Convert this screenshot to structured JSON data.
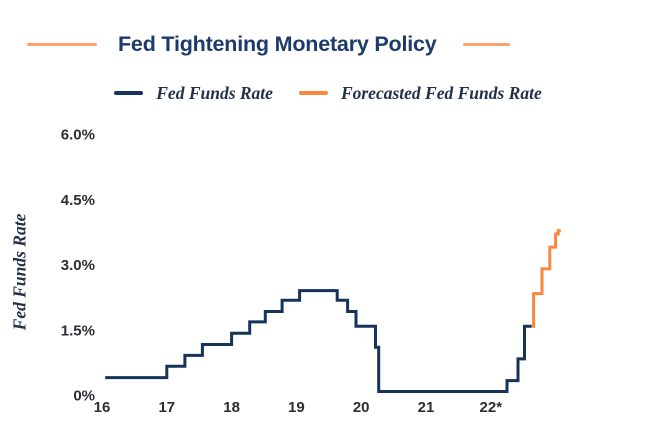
{
  "header": {
    "title": "Fed Tightening Monetary Policy",
    "rule_color": "#F9A26B"
  },
  "colors": {
    "navy": "#16335C",
    "orange": "#F8883F",
    "title_text": "#1C3A6B",
    "tick_text": "#2B2E33",
    "serif_text": "#22304A"
  },
  "legend": {
    "items": [
      {
        "label": "Fed Funds Rate",
        "color": "#16335C"
      },
      {
        "label": "Forecasted Fed Funds Rate",
        "color": "#F8883F"
      }
    ]
  },
  "chart_data": {
    "type": "line",
    "step": true,
    "title": "Fed Tightening Monetary Policy",
    "xlabel": "",
    "ylabel": "Fed Funds Rate",
    "grid": false,
    "legend_position": "top",
    "xlim": [
      15.85,
      23.25
    ],
    "ylim": [
      0,
      6.0
    ],
    "y_ticks": {
      "values": [
        0,
        1.5,
        3.0,
        4.5,
        6.0
      ],
      "labels": [
        "0%",
        "1.5%",
        "3.0%",
        "4.5%",
        "6.0%"
      ]
    },
    "x_ticks": {
      "values": [
        16,
        17,
        18,
        19,
        20,
        21,
        22
      ],
      "labels": [
        "16",
        "17",
        "18",
        "19",
        "20",
        "21",
        "22*"
      ]
    },
    "series": [
      {
        "name": "Fed Funds Rate",
        "color": "#16335C",
        "points": [
          [
            16.05,
            0.4
          ],
          [
            17.0,
            0.66
          ],
          [
            17.28,
            0.91
          ],
          [
            17.55,
            1.16
          ],
          [
            18.0,
            1.42
          ],
          [
            18.28,
            1.68
          ],
          [
            18.52,
            1.92
          ],
          [
            18.78,
            2.18
          ],
          [
            19.05,
            2.4
          ],
          [
            19.63,
            2.18
          ],
          [
            19.79,
            1.92
          ],
          [
            19.92,
            1.58
          ],
          [
            20.22,
            1.1
          ],
          [
            20.27,
            0.08
          ],
          [
            22.25,
            0.33
          ],
          [
            22.42,
            0.83
          ],
          [
            22.52,
            1.58
          ]
        ],
        "end_x": 22.63
      },
      {
        "name": "Forecasted Fed Funds Rate",
        "color": "#F8883F",
        "points": [
          [
            22.63,
            1.58
          ],
          [
            22.66,
            2.33
          ],
          [
            22.79,
            2.9
          ],
          [
            22.91,
            3.4
          ],
          [
            23.0,
            3.7
          ],
          [
            23.04,
            3.78
          ]
        ],
        "end_x": 23.08
      }
    ]
  }
}
